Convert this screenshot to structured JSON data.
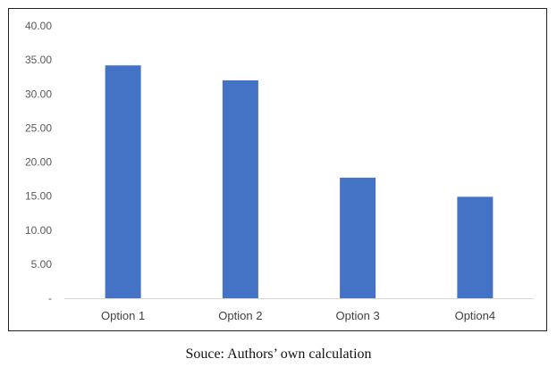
{
  "chart_data": {
    "type": "bar",
    "categories": [
      "Option 1",
      "Option 2",
      "Option 3",
      "Option4"
    ],
    "values": [
      34.2,
      32.0,
      17.7,
      14.9
    ],
    "title": "",
    "xlabel": "",
    "ylabel": "",
    "ylim": [
      0,
      40
    ],
    "yticks": [
      0,
      5,
      10,
      15,
      20,
      25,
      30,
      35,
      40
    ],
    "ytick_labels": [
      "-",
      "5.00",
      "10.00",
      "15.00",
      "20.00",
      "25.00",
      "30.00",
      "35.00",
      "40.00"
    ],
    "grid": false,
    "legend": "none",
    "bar_color": "#4472C4"
  },
  "caption": "Souce: Authors’ own calculation"
}
